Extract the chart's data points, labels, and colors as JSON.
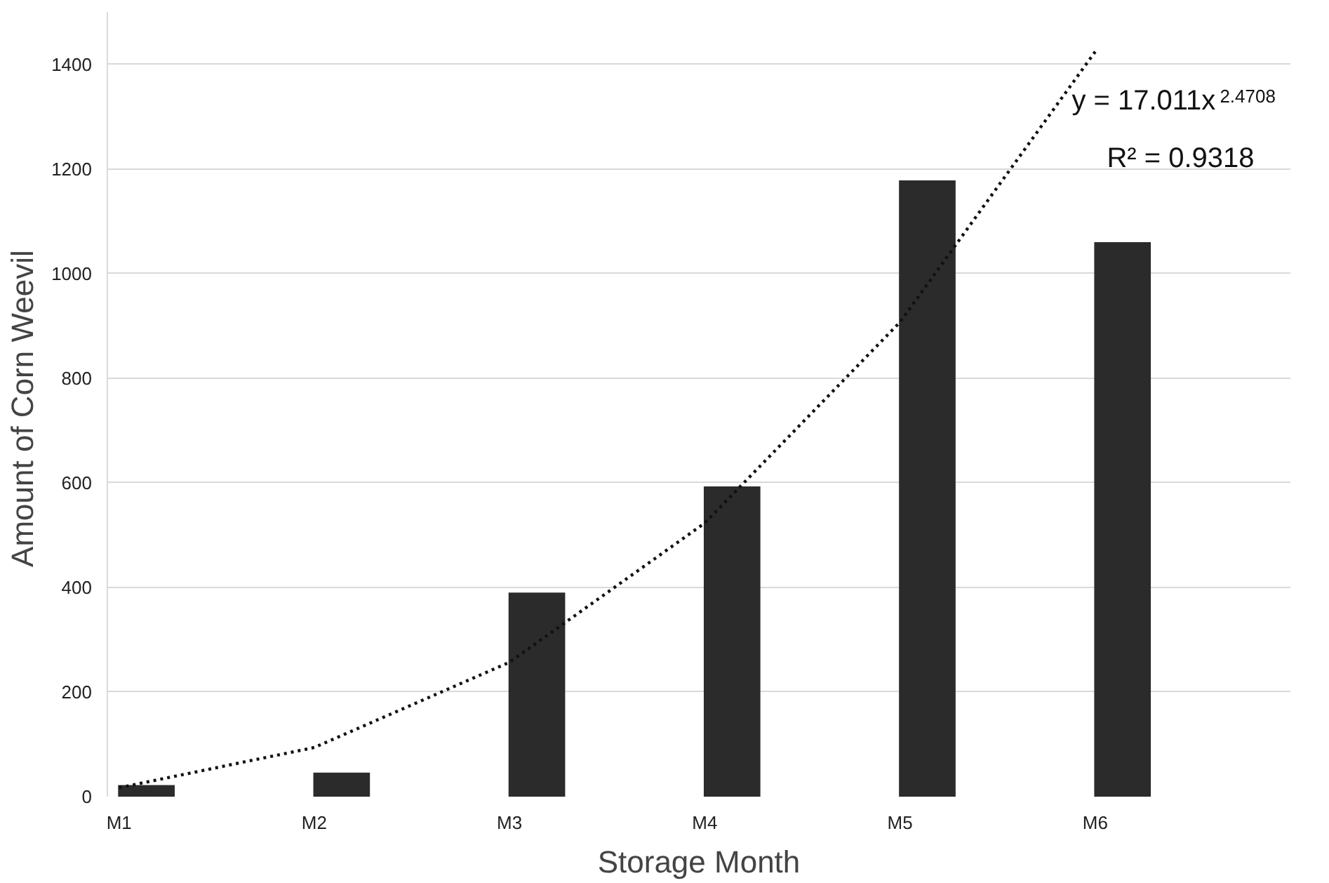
{
  "chart_data": {
    "type": "bar",
    "xlabel": "Storage Month",
    "ylabel": "Amount of  Corn Weevil",
    "categories": [
      "M1",
      "M2",
      "M3",
      "M4",
      "M5",
      "M6"
    ],
    "series": [
      {
        "color": "#2b2b2b",
        "values": [
          22,
          46,
          390,
          593,
          1178,
          1060
        ]
      },
      {
        "type": "line",
        "color": "#111111",
        "line_style": "dotted",
        "values": [
          17,
          94,
          257,
          523,
          907,
          1424
        ]
      }
    ],
    "ylim": [
      0,
      1500
    ],
    "yticks": [
      0,
      200,
      400,
      600,
      800,
      1000,
      1200,
      1400
    ],
    "grid": "y",
    "annotations": [
      "y = 17.011x$^{2.4708}$",
      "R² = 0.9318"
    ]
  }
}
